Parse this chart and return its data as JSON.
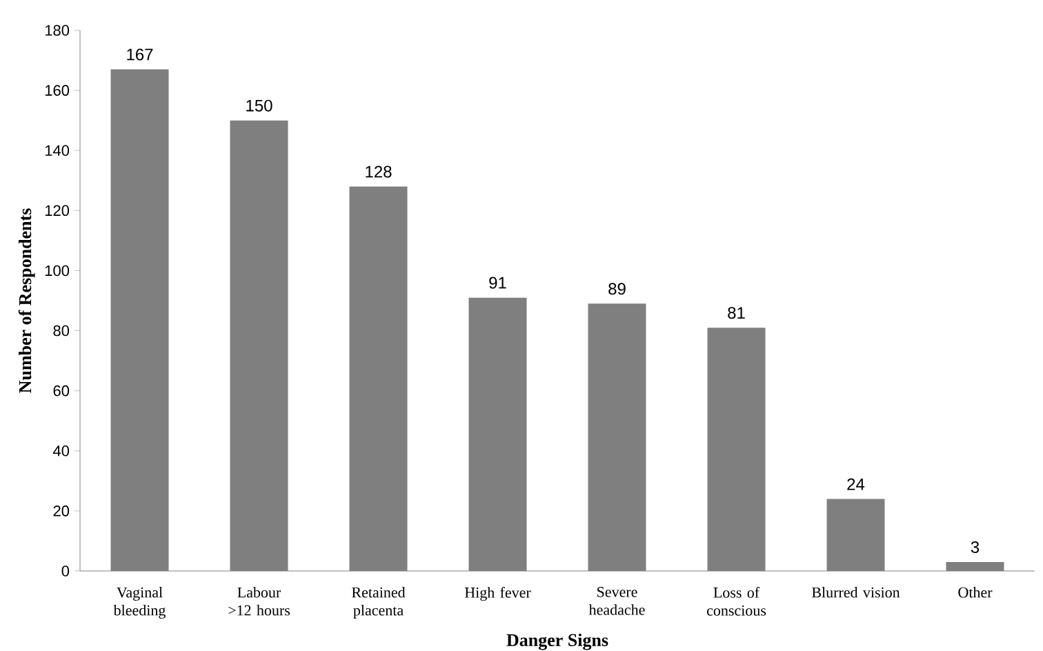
{
  "chart_data": {
    "type": "bar",
    "xlabel": "Danger Signs",
    "ylabel": "Number of Respondents",
    "categories": [
      "Vaginal bleeding",
      "Labour >12 hours",
      "Retained placenta",
      "High fever",
      "Severe headache",
      "Loss of conscious",
      "Blurred vision",
      "Other"
    ],
    "values": [
      167,
      150,
      128,
      91,
      89,
      81,
      24,
      3
    ],
    "color": "#7f7f7f",
    "ylim": [
      0,
      180
    ],
    "yticks": [
      0,
      20,
      40,
      60,
      80,
      100,
      120,
      140,
      160,
      180
    ],
    "data_labels": true
  }
}
